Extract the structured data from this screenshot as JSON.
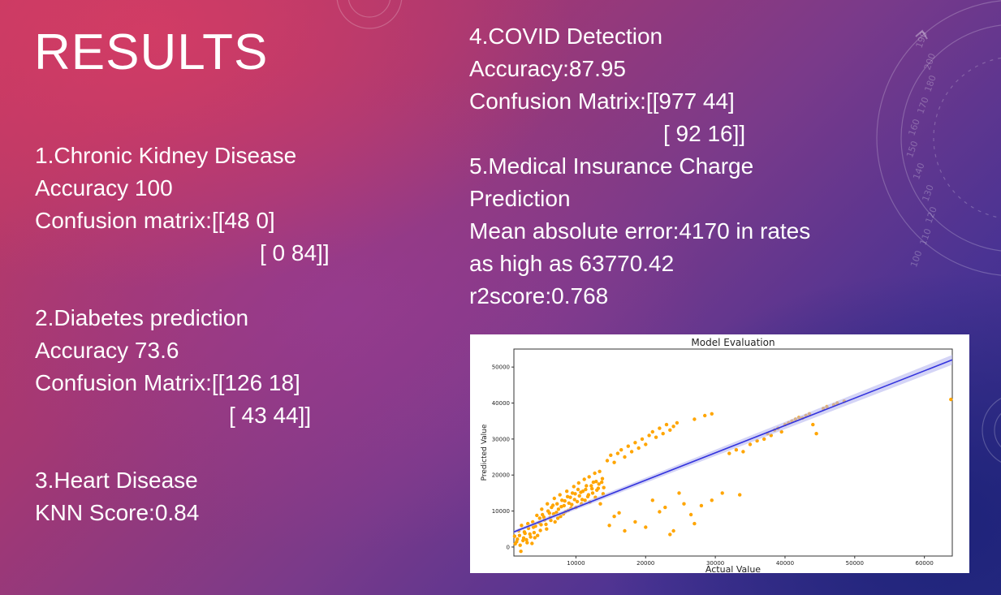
{
  "slide": {
    "title": "RESULTS",
    "left_column": {
      "kidney": {
        "heading": "1.Chronic Kidney Disease",
        "accuracy": "Accuracy 100",
        "matrix_row1": "Confusion matrix:[[48 0]",
        "matrix_row2": "[ 0 84]]"
      },
      "diabetes": {
        "heading": "2.Diabetes prediction",
        "accuracy": "Accuracy 73.6",
        "matrix_row1": "Confusion Matrix:[[126 18]",
        "matrix_row2": "[ 43 44]]"
      },
      "heart": {
        "heading": "3.Heart Disease",
        "score": "KNN Score:0.84"
      }
    },
    "right_column": {
      "covid": {
        "heading": "4.COVID Detection",
        "accuracy": "Accuracy:87.95",
        "matrix_row1": "Confusion Matrix:[[977 44]",
        "matrix_row2": "[ 92 16]]"
      },
      "insurance": {
        "heading_line1": "5.Medical Insurance Charge",
        "heading_line2": "Prediction",
        "mae_line1": "Mean absolute error:4170 in rates",
        "mae_line2": "as high as 63770.42",
        "r2": "r2score:0.768"
      }
    },
    "decoration_ticks": [
      "190",
      "200",
      "180",
      "170",
      "160",
      "150",
      "140",
      "130",
      "120",
      "110",
      "100"
    ]
  },
  "chart_data": {
    "type": "scatter",
    "title": "Model Evaluation",
    "xlabel": "Actual Value",
    "ylabel": "Predicted Value",
    "xlim": [
      1100,
      64000
    ],
    "ylim": [
      -2500,
      55000
    ],
    "x_ticks": [
      10000,
      20000,
      30000,
      40000,
      50000,
      60000
    ],
    "y_ticks": [
      0,
      10000,
      20000,
      30000,
      40000,
      50000
    ],
    "colors": {
      "points": "#FFA500",
      "line": "#3333DD",
      "band": "#B8B8F0"
    },
    "regression_line": {
      "x": [
        1100,
        64000
      ],
      "y": [
        4200,
        52000
      ]
    },
    "series": [
      {
        "values": [
          [
            1200,
            3000
          ],
          [
            1500,
            1500
          ],
          [
            1800,
            4500
          ],
          [
            2000,
            500
          ],
          [
            2200,
            6000
          ],
          [
            2500,
            2500
          ],
          [
            2700,
            3800
          ],
          [
            3000,
            1200
          ],
          [
            3200,
            5200
          ],
          [
            3500,
            2800
          ],
          [
            3800,
            7000
          ],
          [
            4000,
            4000
          ],
          [
            4200,
            5800
          ],
          [
            4500,
            3200
          ],
          [
            4800,
            8000
          ],
          [
            5000,
            6200
          ],
          [
            5200,
            9000
          ],
          [
            5500,
            7500
          ],
          [
            5800,
            5000
          ],
          [
            6000,
            10000
          ],
          [
            6300,
            8200
          ],
          [
            6500,
            11000
          ],
          [
            6800,
            9200
          ],
          [
            7000,
            7000
          ],
          [
            7300,
            12000
          ],
          [
            7500,
            10500
          ],
          [
            7800,
            8500
          ],
          [
            8000,
            13000
          ],
          [
            8300,
            11500
          ],
          [
            8500,
            9800
          ],
          [
            8800,
            14000
          ],
          [
            9000,
            12200
          ],
          [
            9300,
            10800
          ],
          [
            9500,
            15000
          ],
          [
            9800,
            13200
          ],
          [
            10000,
            11000
          ],
          [
            10300,
            16000
          ],
          [
            10500,
            14200
          ],
          [
            10800,
            12000
          ],
          [
            11000,
            15500
          ],
          [
            11300,
            13000
          ],
          [
            11500,
            17000
          ],
          [
            11800,
            14500
          ],
          [
            12000,
            12500
          ],
          [
            12300,
            16200
          ],
          [
            12500,
            18000
          ],
          [
            12800,
            13800
          ],
          [
            13000,
            15800
          ],
          [
            13300,
            17500
          ],
          [
            13500,
            12000
          ],
          [
            13800,
            19000
          ],
          [
            14000,
            16500
          ],
          [
            1300,
            900
          ],
          [
            1600,
            2200
          ],
          [
            1900,
            3200
          ],
          [
            2100,
            -1200
          ],
          [
            2400,
            1800
          ],
          [
            2600,
            4200
          ],
          [
            2900,
            2000
          ],
          [
            3100,
            6500
          ],
          [
            3400,
            3600
          ],
          [
            3700,
            1000
          ],
          [
            3900,
            5500
          ],
          [
            4100,
            2600
          ],
          [
            4400,
            8800
          ],
          [
            4700,
            6800
          ],
          [
            4900,
            4600
          ],
          [
            5100,
            10500
          ],
          [
            5400,
            8300
          ],
          [
            5700,
            6300
          ],
          [
            5900,
            12000
          ],
          [
            6200,
            9400
          ],
          [
            6400,
            7400
          ],
          [
            6700,
            11600
          ],
          [
            6900,
            13500
          ],
          [
            7200,
            9600
          ],
          [
            7400,
            8000
          ],
          [
            7700,
            14500
          ],
          [
            7900,
            11200
          ],
          [
            8200,
            9200
          ],
          [
            8400,
            12800
          ],
          [
            8700,
            15500
          ],
          [
            8900,
            10200
          ],
          [
            9200,
            13800
          ],
          [
            9400,
            11800
          ],
          [
            9700,
            16800
          ],
          [
            9900,
            14800
          ],
          [
            10200,
            12600
          ],
          [
            10400,
            17800
          ],
          [
            10700,
            15200
          ],
          [
            10900,
            13200
          ],
          [
            11200,
            18800
          ],
          [
            11400,
            16000
          ],
          [
            11700,
            14000
          ],
          [
            11900,
            19500
          ],
          [
            12200,
            17000
          ],
          [
            12400,
            15000
          ],
          [
            12700,
            20500
          ],
          [
            12900,
            18200
          ],
          [
            13200,
            16300
          ],
          [
            13400,
            21000
          ],
          [
            13700,
            18000
          ],
          [
            13900,
            14800
          ],
          [
            14500,
            24000
          ],
          [
            15000,
            25500
          ],
          [
            15500,
            23500
          ],
          [
            16000,
            26000
          ],
          [
            16500,
            27000
          ],
          [
            17000,
            25000
          ],
          [
            17500,
            28000
          ],
          [
            18000,
            26500
          ],
          [
            18500,
            29000
          ],
          [
            19000,
            27500
          ],
          [
            19500,
            30000
          ],
          [
            20000,
            28500
          ],
          [
            20500,
            31000
          ],
          [
            21000,
            32000
          ],
          [
            21500,
            30500
          ],
          [
            22000,
            33000
          ],
          [
            22500,
            31500
          ],
          [
            23000,
            34000
          ],
          [
            23500,
            32500
          ],
          [
            24000,
            33500
          ],
          [
            24500,
            34500
          ],
          [
            27000,
            35500
          ],
          [
            28500,
            36500
          ],
          [
            29500,
            37000
          ],
          [
            14800,
            6000
          ],
          [
            15500,
            8500
          ],
          [
            16200,
            9500
          ],
          [
            17000,
            4500
          ],
          [
            18500,
            7000
          ],
          [
            20000,
            5500
          ],
          [
            21000,
            13000
          ],
          [
            22000,
            9800
          ],
          [
            22800,
            11000
          ],
          [
            23500,
            3500
          ],
          [
            24000,
            4500
          ],
          [
            24800,
            15000
          ],
          [
            25500,
            12000
          ],
          [
            26500,
            9000
          ],
          [
            27000,
            6500
          ],
          [
            28000,
            11500
          ],
          [
            29500,
            13000
          ],
          [
            31000,
            15000
          ],
          [
            33500,
            14500
          ],
          [
            32000,
            26000
          ],
          [
            33000,
            27000
          ],
          [
            34000,
            26500
          ],
          [
            35000,
            28500
          ],
          [
            36000,
            29500
          ],
          [
            37000,
            30000
          ],
          [
            37500,
            31500
          ],
          [
            38000,
            31000
          ],
          [
            38500,
            32500
          ],
          [
            39000,
            33000
          ],
          [
            39500,
            32000
          ],
          [
            40000,
            34000
          ],
          [
            40500,
            34500
          ],
          [
            41000,
            35000
          ],
          [
            41500,
            35500
          ],
          [
            42000,
            36000
          ],
          [
            42500,
            35800
          ],
          [
            43000,
            36500
          ],
          [
            43500,
            37000
          ],
          [
            44000,
            34000
          ],
          [
            44500,
            31500
          ],
          [
            45500,
            38500
          ],
          [
            46000,
            39000
          ],
          [
            47000,
            39500
          ],
          [
            47500,
            40000
          ],
          [
            48500,
            40500
          ],
          [
            63800,
            41000
          ]
        ]
      }
    ]
  }
}
